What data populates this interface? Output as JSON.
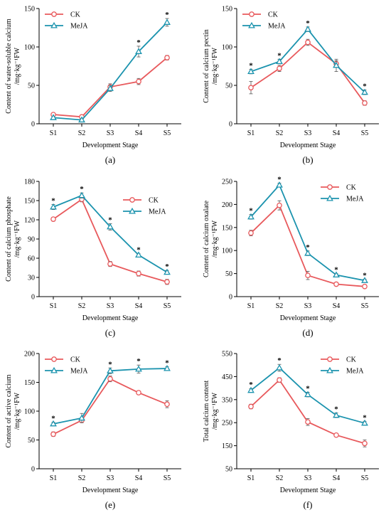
{
  "series_styles": {
    "CK": {
      "color": "#E8595C",
      "marker": "circle"
    },
    "MeJA": {
      "color": "#1B93AE",
      "marker": "triangle"
    }
  },
  "chart_data": [
    {
      "type": "line",
      "panel_label": "(a)",
      "ylabel_lines": [
        "Content of water-soluble calcium",
        "/mg·kg⁻¹FW"
      ],
      "xlabel": "Development Stage",
      "categories": [
        "S1",
        "S2",
        "S3",
        "S4",
        "S5"
      ],
      "ylim": [
        0,
        150
      ],
      "yticks": [
        0,
        50,
        100,
        150
      ],
      "legend_position": "top-left",
      "series": [
        {
          "name": "CK",
          "values": [
            12,
            9,
            48,
            55,
            86
          ],
          "errors": [
            1.5,
            1.5,
            4,
            4,
            3
          ]
        },
        {
          "name": "MeJA",
          "values": [
            8,
            5,
            46,
            94,
            132
          ],
          "errors": [
            1.5,
            1.5,
            4,
            7,
            5
          ]
        }
      ],
      "significance_stars": [
        false,
        false,
        false,
        true,
        true
      ]
    },
    {
      "type": "line",
      "panel_label": "(b)",
      "ylabel_lines": [
        "Content of calcium pectin",
        "/mg·kg⁻¹FW"
      ],
      "xlabel": "Development Stage",
      "categories": [
        "S1",
        "S2",
        "S3",
        "S4",
        "S5"
      ],
      "ylim": [
        0,
        150
      ],
      "yticks": [
        0,
        50,
        100,
        150
      ],
      "legend_position": "top-left",
      "series": [
        {
          "name": "CK",
          "values": [
            47,
            72,
            106,
            78,
            27
          ],
          "errors": [
            8,
            4,
            4,
            4,
            3
          ]
        },
        {
          "name": "MeJA",
          "values": [
            68,
            81,
            123,
            76,
            41
          ],
          "errors": [
            3,
            3,
            3,
            8,
            3
          ]
        }
      ],
      "significance_stars": [
        true,
        true,
        true,
        false,
        true
      ]
    },
    {
      "type": "line",
      "panel_label": "(c)",
      "ylabel_lines": [
        "Content of calcium phosphate",
        "/mg·kg⁻¹FW"
      ],
      "xlabel": "Development Stage",
      "categories": [
        "S1",
        "S2",
        "S3",
        "S4",
        "S5"
      ],
      "ylim": [
        0,
        180
      ],
      "yticks": [
        0,
        30,
        60,
        90,
        120,
        150,
        180
      ],
      "legend_position": "right",
      "series": [
        {
          "name": "CK",
          "values": [
            121,
            152,
            51,
            36,
            23
          ],
          "errors": [
            3,
            4,
            4,
            4,
            4
          ]
        },
        {
          "name": "MeJA",
          "values": [
            140,
            158,
            109,
            65,
            38
          ],
          "errors": [
            4,
            4,
            5,
            2,
            3
          ]
        }
      ],
      "significance_stars": [
        true,
        true,
        true,
        true,
        true
      ]
    },
    {
      "type": "line",
      "panel_label": "(d)",
      "ylabel_lines": [
        "Content of calcium oxalate",
        "/mg·kg⁻¹FW"
      ],
      "xlabel": "Development Stage",
      "categories": [
        "S1",
        "S2",
        "S3",
        "S4",
        "S5"
      ],
      "ylim": [
        0,
        250
      ],
      "yticks": [
        0,
        50,
        100,
        150,
        200,
        250
      ],
      "legend_position": "top-right",
      "series": [
        {
          "name": "CK",
          "values": [
            138,
            198,
            46,
            27,
            22
          ],
          "errors": [
            6,
            10,
            9,
            2,
            3
          ]
        },
        {
          "name": "MeJA",
          "values": [
            173,
            242,
            94,
            47,
            35
          ],
          "errors": [
            5,
            4,
            5,
            3,
            3
          ]
        }
      ],
      "significance_stars": [
        true,
        true,
        true,
        true,
        true
      ]
    },
    {
      "type": "line",
      "panel_label": "(e)",
      "ylabel_lines": [
        "Content of active calcium",
        "/mg·kg⁻¹FW"
      ],
      "xlabel": "Development Stage",
      "categories": [
        "S1",
        "S2",
        "S3",
        "S4",
        "S5"
      ],
      "ylim": [
        0,
        200
      ],
      "yticks": [
        0,
        50,
        100,
        150,
        200
      ],
      "legend_position": "top-left",
      "series": [
        {
          "name": "CK",
          "values": [
            60,
            84,
            156,
            132,
            112
          ],
          "errors": [
            4,
            4,
            5,
            3,
            6
          ]
        },
        {
          "name": "MeJA",
          "values": [
            78,
            88,
            170,
            173,
            174
          ],
          "errors": [
            3,
            8,
            5,
            7,
            3
          ]
        }
      ],
      "significance_stars": [
        true,
        false,
        true,
        true,
        true
      ]
    },
    {
      "type": "line",
      "panel_label": "(f)",
      "ylabel_lines": [
        "Total calcium content",
        "/mg·kg⁻¹FW"
      ],
      "xlabel": "Development Stage",
      "categories": [
        "S1",
        "S2",
        "S3",
        "S4",
        "S5"
      ],
      "ylim": [
        50,
        550
      ],
      "yticks": [
        50,
        150,
        250,
        350,
        450,
        550
      ],
      "legend_position": "top-right",
      "series": [
        {
          "name": "CK",
          "values": [
            320,
            435,
            253,
            196,
            160
          ],
          "errors": [
            10,
            10,
            15,
            5,
            15
          ]
        },
        {
          "name": "MeJA",
          "values": [
            390,
            488,
            372,
            282,
            248
          ],
          "errors": [
            8,
            15,
            10,
            10,
            8
          ]
        }
      ],
      "significance_stars": [
        true,
        true,
        true,
        true,
        true
      ]
    }
  ]
}
